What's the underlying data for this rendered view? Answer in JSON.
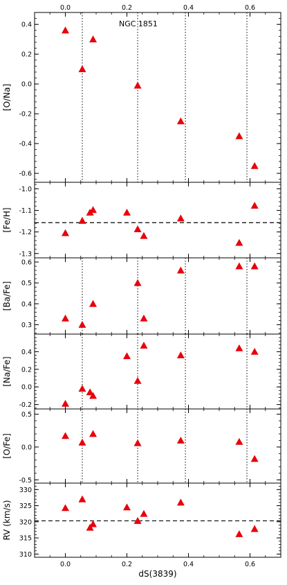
{
  "chart_data": {
    "type": "scatter",
    "x_label": "dS(3839)",
    "x_range": [
      -0.1,
      0.7
    ],
    "x_ticks": [
      0.0,
      0.2,
      0.4,
      0.6
    ],
    "x_tick_labels": [
      "0.0",
      "0.2",
      "0.4",
      "0.6"
    ],
    "marker": "triangle",
    "marker_color": "#e8000b",
    "vertical_reference_lines_x": [
      0.055,
      0.235,
      0.39,
      0.59
    ],
    "panels": [
      {
        "ylabel": "[O/Na]",
        "ylim": [
          -0.66,
          0.48
        ],
        "yticks": [
          0.4,
          0.2,
          0.0,
          -0.2,
          -0.4,
          -0.6
        ],
        "ytick_labels": [
          "0.4",
          "0.2",
          "0.0",
          "-0.2",
          "-0.4",
          "-0.6"
        ],
        "annotation": "NGC 1851",
        "horizontal_line": null,
        "vlines": [
          0,
          1,
          2,
          3
        ],
        "points": [
          [
            0.0,
            0.36
          ],
          [
            0.055,
            0.1
          ],
          [
            0.09,
            0.3
          ],
          [
            0.235,
            -0.01
          ],
          [
            0.375,
            -0.25
          ],
          [
            0.565,
            -0.35
          ],
          [
            0.615,
            -0.55
          ]
        ]
      },
      {
        "ylabel": "[Fe/H]",
        "ylim": [
          -1.32,
          -0.97
        ],
        "yticks": [
          -1.0,
          -1.1,
          -1.2,
          -1.3
        ],
        "ytick_labels": [
          "-1.0",
          "-1.1",
          "-1.2",
          "-1.3"
        ],
        "annotation": "",
        "horizontal_line": -1.157,
        "vlines": [],
        "points": [
          [
            0.0,
            -1.205
          ],
          [
            0.055,
            -1.148
          ],
          [
            0.08,
            -1.11
          ],
          [
            0.09,
            -1.098
          ],
          [
            0.2,
            -1.11
          ],
          [
            0.235,
            -1.187
          ],
          [
            0.255,
            -1.218
          ],
          [
            0.375,
            -1.137
          ],
          [
            0.565,
            -1.25
          ],
          [
            0.615,
            -1.078
          ]
        ]
      },
      {
        "ylabel": "[Ba/Fe]",
        "ylim": [
          0.255,
          0.62
        ],
        "yticks": [
          0.6,
          0.5,
          0.4,
          0.3
        ],
        "ytick_labels": [
          "0.6",
          "0.5",
          "0.4",
          "0.3"
        ],
        "annotation": "",
        "horizontal_line": null,
        "vlines": [
          0,
          1,
          2,
          3
        ],
        "points": [
          [
            0.0,
            0.33
          ],
          [
            0.055,
            0.3
          ],
          [
            0.09,
            0.4
          ],
          [
            0.235,
            0.5
          ],
          [
            0.255,
            0.33
          ],
          [
            0.375,
            0.56
          ],
          [
            0.565,
            0.58
          ],
          [
            0.615,
            0.58
          ]
        ]
      },
      {
        "ylabel": "[Na/Fe]",
        "ylim": [
          -0.25,
          0.6
        ],
        "yticks": [
          0.4,
          0.2,
          0.0,
          -0.2
        ],
        "ytick_labels": [
          "0.4",
          "0.2",
          "0.0",
          "-0.2"
        ],
        "annotation": "",
        "horizontal_line": null,
        "vlines": [
          0,
          1,
          2,
          3
        ],
        "points": [
          [
            0.0,
            -0.19
          ],
          [
            0.055,
            -0.02
          ],
          [
            0.08,
            -0.06
          ],
          [
            0.09,
            -0.1
          ],
          [
            0.2,
            0.35
          ],
          [
            0.235,
            0.07
          ],
          [
            0.255,
            0.47
          ],
          [
            0.375,
            0.36
          ],
          [
            0.565,
            0.44
          ],
          [
            0.615,
            0.4
          ]
        ]
      },
      {
        "ylabel": "[O/Fe]",
        "ylim": [
          -0.55,
          0.58
        ],
        "yticks": [
          0.5,
          0.0,
          -0.5
        ],
        "ytick_labels": [
          "0.5",
          "0.0",
          "-0.5"
        ],
        "annotation": "",
        "horizontal_line": null,
        "vlines": [
          0,
          1,
          2,
          3
        ],
        "points": [
          [
            0.0,
            0.17
          ],
          [
            0.055,
            0.07
          ],
          [
            0.09,
            0.2
          ],
          [
            0.235,
            0.06
          ],
          [
            0.375,
            0.1
          ],
          [
            0.565,
            0.08
          ],
          [
            0.615,
            -0.18
          ]
        ]
      },
      {
        "ylabel": "RV (km/s)",
        "ylim": [
          309.0,
          332.0
        ],
        "yticks": [
          330,
          325,
          320,
          315,
          310
        ],
        "ytick_labels": [
          "330",
          "325",
          "320",
          "315",
          "310"
        ],
        "annotation": "",
        "horizontal_line": 320.3,
        "vlines": [],
        "points": [
          [
            0.0,
            324.3
          ],
          [
            0.055,
            327.0
          ],
          [
            0.08,
            318.2
          ],
          [
            0.09,
            319.3
          ],
          [
            0.2,
            324.5
          ],
          [
            0.235,
            320.3
          ],
          [
            0.255,
            322.5
          ],
          [
            0.375,
            326.0
          ],
          [
            0.565,
            316.2
          ],
          [
            0.615,
            317.8
          ]
        ]
      }
    ]
  }
}
